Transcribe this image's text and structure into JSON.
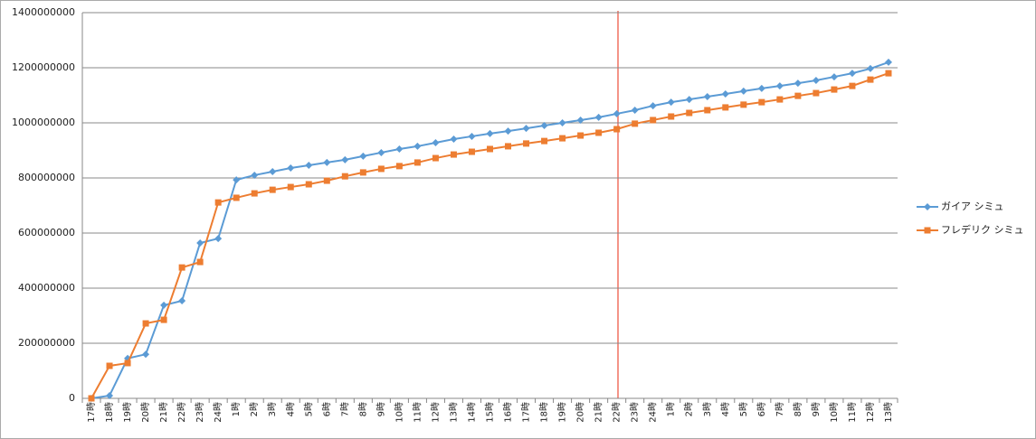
{
  "chart_data": {
    "type": "line",
    "categories": [
      "17時",
      "18時",
      "19時",
      "20時",
      "21時",
      "22時",
      "23時",
      "24時",
      "1時",
      "2時",
      "3時",
      "4時",
      "5時",
      "6時",
      "7時",
      "8時",
      "9時",
      "10時",
      "11時",
      "12時",
      "13時",
      "14時",
      "15時",
      "16時",
      "17時",
      "18時",
      "19時",
      "20時",
      "21時",
      "22時",
      "23時",
      "24時",
      "1時",
      "2時",
      "3時",
      "4時",
      "5時",
      "6時",
      "7時",
      "8時",
      "9時",
      "10時",
      "11時",
      "12時",
      "13時"
    ],
    "series": [
      {
        "name": "ガイア シミュ",
        "color": "#5b9bd5",
        "marker": "diamond",
        "values": [
          0,
          10000000,
          145000000,
          160000000,
          338000000,
          354000000,
          564000000,
          580000000,
          793000000,
          810000000,
          823000000,
          836000000,
          846000000,
          856000000,
          866000000,
          879000000,
          892000000,
          905000000,
          915000000,
          928000000,
          941000000,
          951000000,
          961000000,
          970000000,
          980000000,
          990000000,
          1000000000,
          1010000000,
          1020000000,
          1033000000,
          1046000000,
          1062000000,
          1075000000,
          1085000000,
          1095000000,
          1105000000,
          1115000000,
          1125000000,
          1134000000,
          1144000000,
          1154000000,
          1167000000,
          1180000000,
          1197000000,
          1220000000
        ]
      },
      {
        "name": "フレデリク シミュ",
        "color": "#ed7d31",
        "marker": "square",
        "values": [
          0,
          118000000,
          128000000,
          272000000,
          285000000,
          475000000,
          495000000,
          711000000,
          728000000,
          744000000,
          757000000,
          767000000,
          777000000,
          790000000,
          806000000,
          820000000,
          833000000,
          843000000,
          856000000,
          872000000,
          885000000,
          895000000,
          905000000,
          915000000,
          925000000,
          934000000,
          944000000,
          954000000,
          964000000,
          977000000,
          997000000,
          1010000000,
          1023000000,
          1036000000,
          1046000000,
          1056000000,
          1066000000,
          1075000000,
          1085000000,
          1098000000,
          1108000000,
          1121000000,
          1134000000,
          1157000000,
          1180000000
        ]
      }
    ],
    "ylim": [
      0,
      1400000000
    ],
    "yticks": [
      0,
      200000000,
      400000000,
      600000000,
      800000000,
      1000000000,
      1200000000,
      1400000000
    ],
    "grid": true,
    "legend": "right"
  }
}
